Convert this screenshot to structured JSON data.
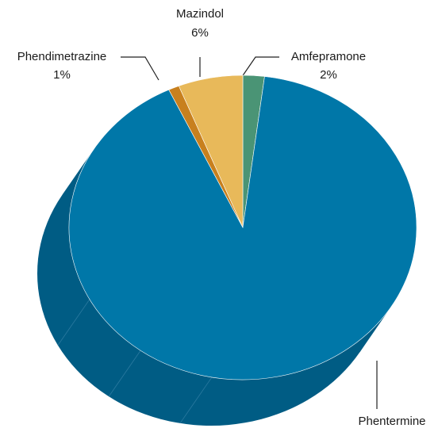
{
  "chart_data": {
    "type": "pie",
    "categories": [
      "Amfepramone",
      "Phentermine",
      "Phendimetrazine",
      "Mazindol"
    ],
    "values": [
      2,
      91,
      1,
      6
    ],
    "value_labels": [
      "2%",
      null,
      "1%",
      "6%"
    ],
    "colors": [
      "#4a9475",
      "#0077a8",
      "#c8801e",
      "#e8b95a"
    ],
    "start_angle": -90,
    "direction": "clockwise"
  }
}
